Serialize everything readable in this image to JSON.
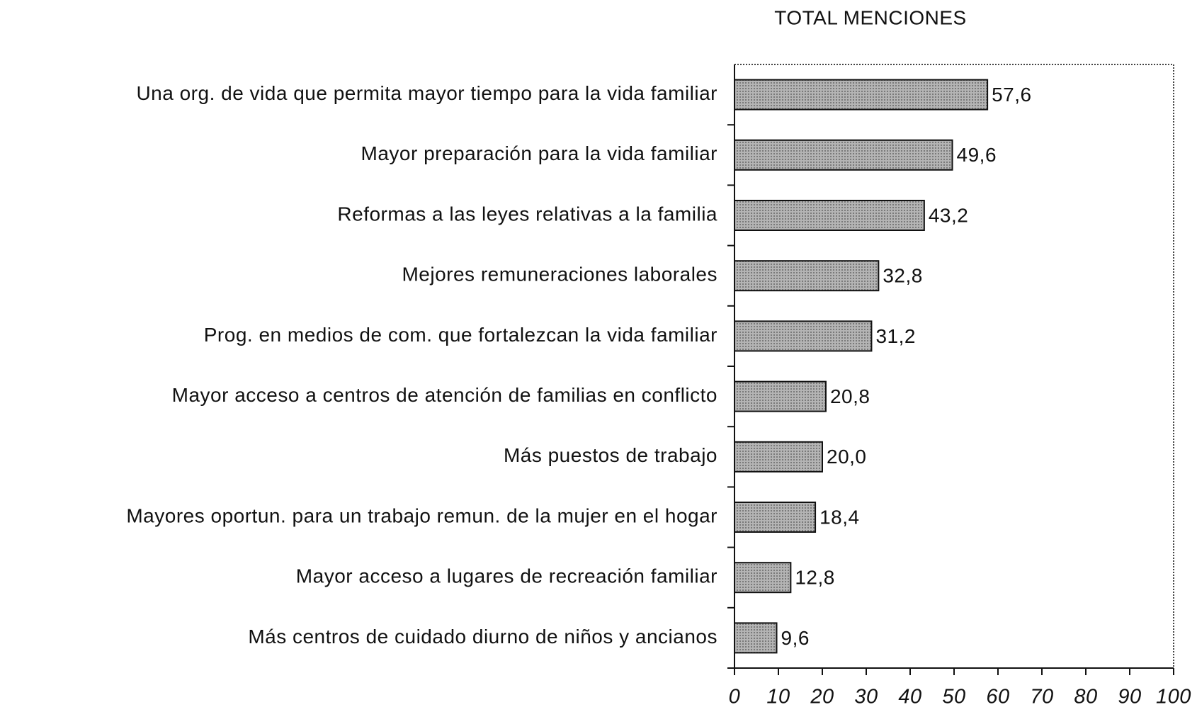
{
  "chart_data": {
    "type": "bar",
    "orientation": "horizontal",
    "title": "TOTAL MENCIONES",
    "categories": [
      "Una org. de vida que permita mayor tiempo para la vida familiar",
      "Mayor preparación para la vida familiar",
      "Reformas a las leyes relativas a la familia",
      "Mejores remuneraciones laborales",
      "Prog. en medios de com. que fortalezcan la vida familiar",
      "Mayor acceso a centros de atención de familias en conflicto",
      "Más puestos de trabajo",
      "Mayores oportun. para un trabajo remun. de la mujer en el hogar",
      "Mayor acceso a lugares de recreación familiar",
      "Más centros de cuidado diurno de niños y ancianos"
    ],
    "values": [
      57.6,
      49.6,
      43.2,
      32.8,
      31.2,
      20.8,
      20.0,
      18.4,
      12.8,
      9.6
    ],
    "value_labels": [
      "57,6",
      "49,6",
      "43,2",
      "32,8",
      "31,2",
      "20,8",
      "20,0",
      "18,4",
      "12,8",
      "9,6"
    ],
    "color": "#a9a9a9",
    "xlim": [
      0,
      100
    ],
    "xticks": [
      0,
      10,
      20,
      30,
      40,
      50,
      60,
      70,
      80,
      90,
      100
    ]
  }
}
